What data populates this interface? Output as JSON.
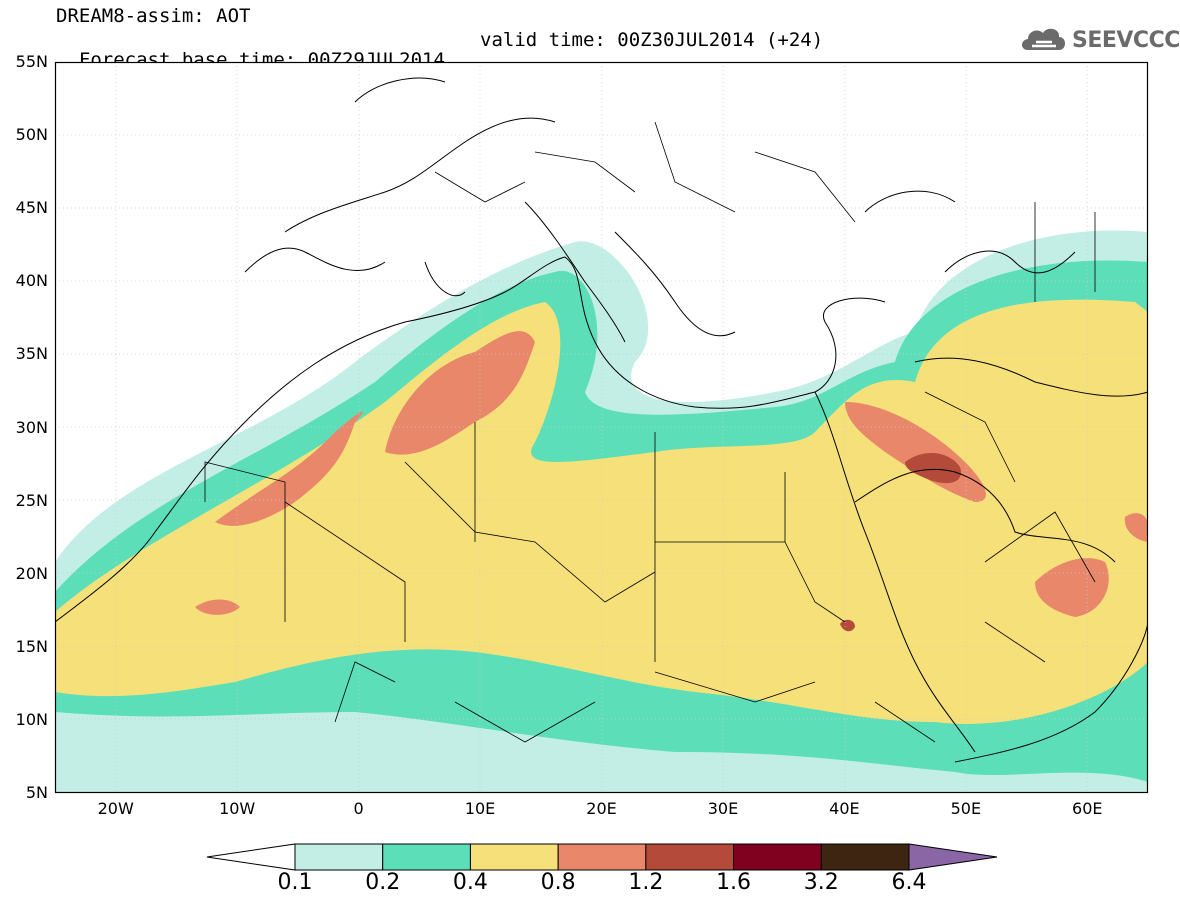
{
  "title": {
    "line1": "DREAM8-assim: AOT",
    "line2_left": "Forecast base time: 00Z29JUL2014",
    "line2_right": "valid time: 00Z30JUL2014 (+24)"
  },
  "logo": {
    "text": "SEEVCCC",
    "icon": "cloud-icon"
  },
  "map": {
    "extent": {
      "lon": [
        -25,
        65
      ],
      "lat": [
        5,
        55
      ]
    },
    "lat_ticks": [
      {
        "value": 55,
        "label": "55N"
      },
      {
        "value": 50,
        "label": "50N"
      },
      {
        "value": 45,
        "label": "45N"
      },
      {
        "value": 40,
        "label": "40N"
      },
      {
        "value": 35,
        "label": "35N"
      },
      {
        "value": 30,
        "label": "30N"
      },
      {
        "value": 25,
        "label": "25N"
      },
      {
        "value": 20,
        "label": "20N"
      },
      {
        "value": 15,
        "label": "15N"
      },
      {
        "value": 10,
        "label": "10N"
      },
      {
        "value": 5,
        "label": "5N"
      }
    ],
    "lon_ticks": [
      {
        "value": -20,
        "label": "20W"
      },
      {
        "value": -10,
        "label": "10W"
      },
      {
        "value": 0,
        "label": "0"
      },
      {
        "value": 10,
        "label": "10E"
      },
      {
        "value": 20,
        "label": "20E"
      },
      {
        "value": 30,
        "label": "30E"
      },
      {
        "value": 40,
        "label": "40E"
      },
      {
        "value": 50,
        "label": "50E"
      },
      {
        "value": 60,
        "label": "60E"
      }
    ]
  },
  "colorbar": {
    "colors": [
      "#ffffff",
      "#c3eee6",
      "#5cdfb8",
      "#f5e07a",
      "#e8876a",
      "#b34a3a",
      "#800020",
      "#3d2512",
      "#8a66a6"
    ],
    "labels": [
      "0.1",
      "0.2",
      "0.4",
      "0.8",
      "1.2",
      "1.6",
      "3.2",
      "6.4"
    ]
  }
}
